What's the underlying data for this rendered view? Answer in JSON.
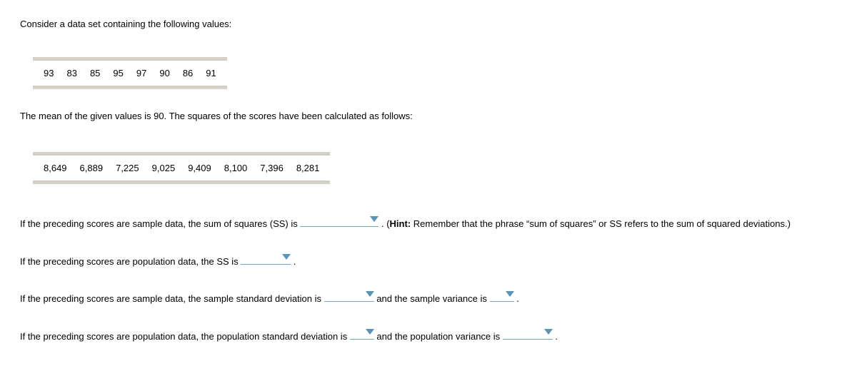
{
  "intro": "Consider a data set containing the following values:",
  "values_row": [
    "93",
    "83",
    "85",
    "95",
    "97",
    "90",
    "86",
    "91"
  ],
  "mean_line": "The mean of the given values is 90. The squares of the scores have been calculated as follows:",
  "squares_row": [
    "8,649",
    "6,889",
    "7,225",
    "9,025",
    "9,409",
    "8,100",
    "7,396",
    "8,281"
  ],
  "q1_a": "If the preceding scores are sample data, the sum of squares (SS) is ",
  "q1_b": " . (",
  "q1_hint_label": "Hint:",
  "q1_c": " Remember that the phrase “sum of squares” or SS refers to the sum of squared deviations.)",
  "q2_a": "If the preceding scores are population data, the SS is ",
  "q2_b": " .",
  "q3_a": "If the preceding scores are sample data, the sample standard deviation is ",
  "q3_b": " and the sample variance is ",
  "q3_c": " .",
  "q4_a": "If the preceding scores are population data, the population standard deviation is ",
  "q4_b": " and the population variance is ",
  "q4_c": " ."
}
